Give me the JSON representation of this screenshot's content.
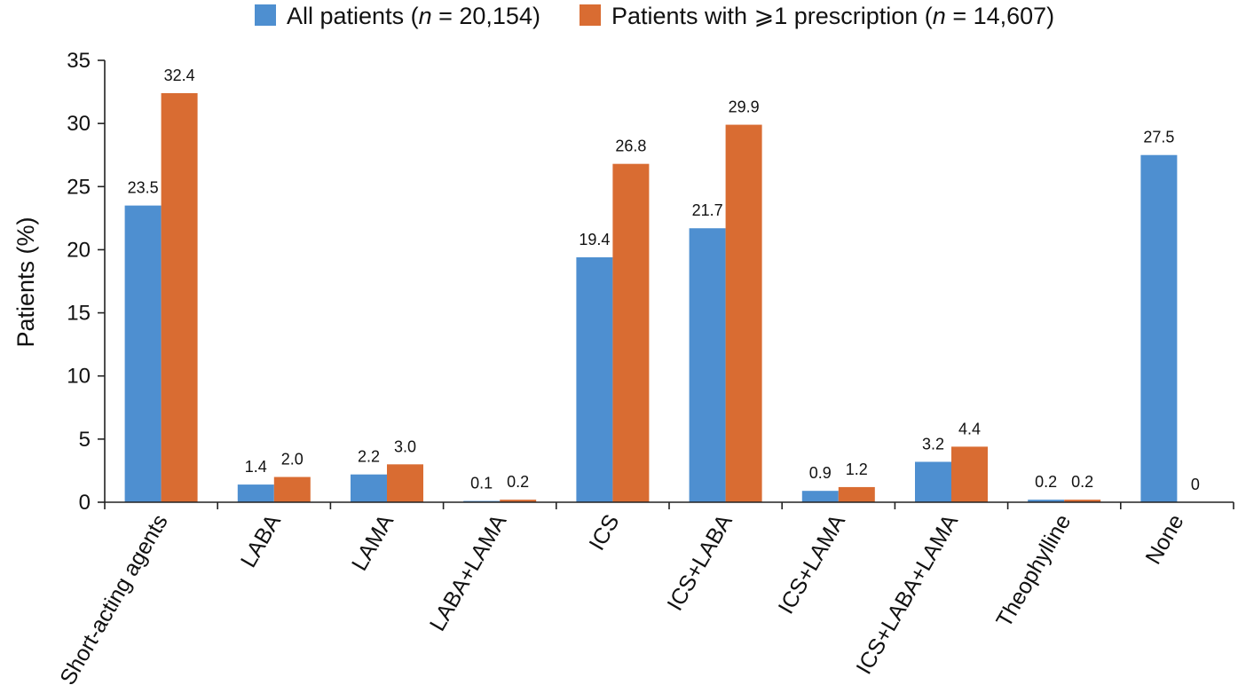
{
  "chart_data": {
    "type": "bar",
    "title": "",
    "xlabel": "",
    "ylabel": "Patients (%)",
    "ylim": [
      0,
      35
    ],
    "yticks": [
      0,
      5,
      10,
      15,
      20,
      25,
      30,
      35
    ],
    "grid": false,
    "legend_position": "top",
    "categories": [
      "Short-acting agents",
      "LABA",
      "LAMA",
      "LABA+LAMA",
      "ICS",
      "ICS+LABA",
      "ICS+LAMA",
      "ICS+LABA+LAMA",
      "Theophylline",
      "None"
    ],
    "series": [
      {
        "name": "All patients",
        "legend_prefix": "All patients (",
        "legend_n": "n",
        "legend_suffix": " = 20,154)",
        "color": "#4E8FD0",
        "values": [
          23.5,
          1.4,
          2.2,
          0.1,
          19.4,
          21.7,
          0.9,
          3.2,
          0.2,
          27.5
        ],
        "labels": [
          "23.5",
          "1.4",
          "2.2",
          "0.1",
          "19.4",
          "21.7",
          "0.9",
          "3.2",
          "0.2",
          "27.5"
        ]
      },
      {
        "name": "Patients with ≥1 prescription",
        "legend_prefix": "Patients with ⩾1 prescription (",
        "legend_n": "n",
        "legend_suffix": " = 14,607)",
        "color": "#D96C32",
        "values": [
          32.4,
          2.0,
          3.0,
          0.2,
          26.8,
          29.9,
          1.2,
          4.4,
          0.2,
          0
        ],
        "labels": [
          "32.4",
          "2.0",
          "3.0",
          "0.2",
          "26.8",
          "29.9",
          "1.2",
          "4.4",
          "0.2",
          "0"
        ]
      }
    ]
  }
}
